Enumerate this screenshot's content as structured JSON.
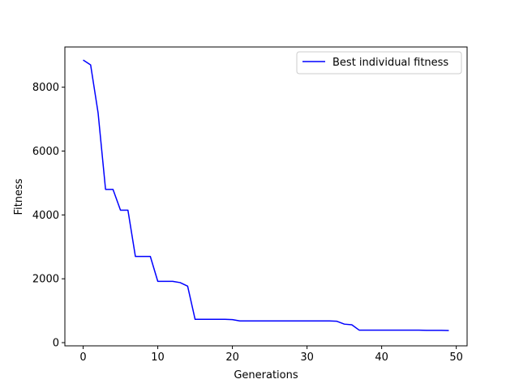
{
  "chart_data": {
    "type": "line",
    "title": "",
    "xlabel": "Generations",
    "ylabel": "Fitness",
    "xlim": [
      -2.45,
      51.45
    ],
    "ylim": [
      -100,
      9260
    ],
    "xticks": [
      0,
      10,
      20,
      30,
      40,
      50
    ],
    "yticks": [
      0,
      2000,
      4000,
      6000,
      8000
    ],
    "grid": false,
    "legend_position": "top-right",
    "series": [
      {
        "name": "Best individual fitness",
        "color": "#0000ff",
        "x": [
          0,
          1,
          2,
          3,
          4,
          5,
          6,
          7,
          8,
          9,
          10,
          11,
          12,
          13,
          14,
          15,
          16,
          17,
          18,
          19,
          20,
          21,
          22,
          23,
          24,
          25,
          26,
          27,
          28,
          29,
          30,
          31,
          32,
          33,
          34,
          35,
          36,
          37,
          38,
          39,
          40,
          41,
          42,
          43,
          44,
          45,
          46,
          47,
          48,
          49
        ],
        "y": [
          8850,
          8700,
          7200,
          4800,
          4800,
          4150,
          4150,
          2700,
          2700,
          2700,
          1920,
          1920,
          1920,
          1880,
          1770,
          730,
          730,
          730,
          730,
          730,
          720,
          680,
          680,
          680,
          680,
          680,
          680,
          680,
          680,
          680,
          680,
          680,
          680,
          680,
          670,
          580,
          560,
          390,
          390,
          390,
          390,
          390,
          390,
          390,
          390,
          390,
          385,
          385,
          385,
          380
        ]
      }
    ]
  }
}
